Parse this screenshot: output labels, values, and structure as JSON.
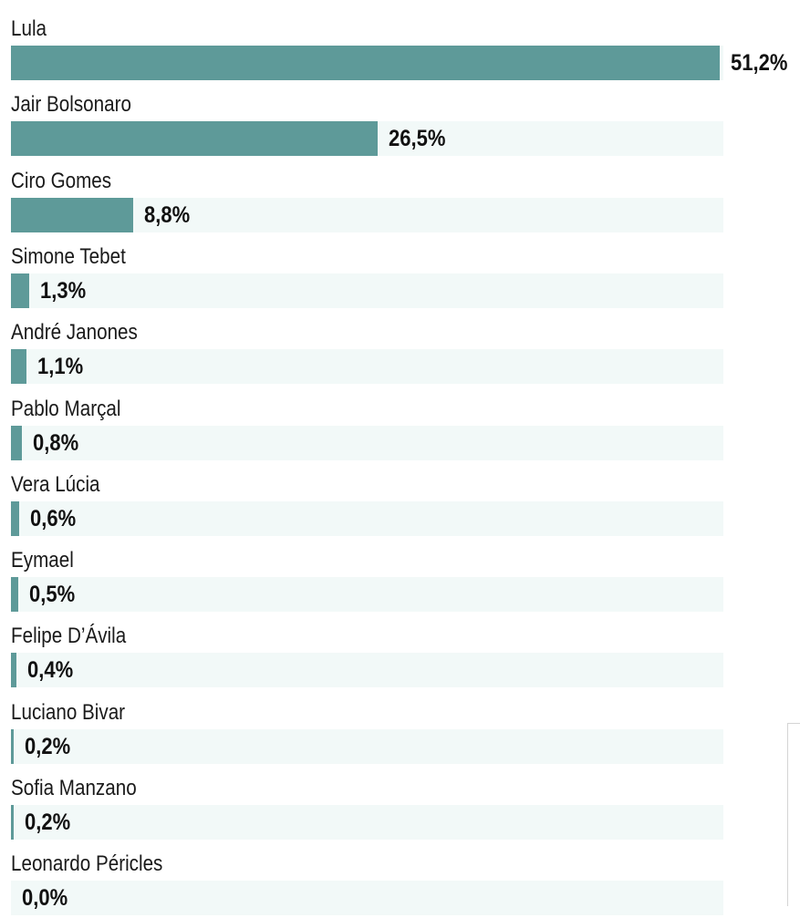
{
  "chart_data": {
    "type": "bar",
    "orientation": "horizontal",
    "categories": [
      "Lula",
      "Jair Bolsonaro",
      "Ciro Gomes",
      "Simone Tebet",
      "André Janones",
      "Pablo Marçal",
      "Vera Lúcia",
      "Eymael",
      "Felipe D’Ávila",
      "Luciano Bivar",
      "Sofia Manzano",
      "Leonardo Péricles"
    ],
    "values": [
      51.2,
      26.5,
      8.8,
      1.3,
      1.1,
      0.8,
      0.6,
      0.5,
      0.4,
      0.2,
      0.2,
      0.0
    ],
    "value_labels": [
      "51,2%",
      "26,5%",
      "8,8%",
      "1,3%",
      "1,1%",
      "0,8%",
      "0,6%",
      "0,5%",
      "0,4%",
      "0,2%",
      "0,2%",
      "0,0%"
    ],
    "xlim": [
      0,
      51.2
    ],
    "bar_color": "#5e9a99",
    "track_color": "#f2f9f8",
    "grid": false
  }
}
